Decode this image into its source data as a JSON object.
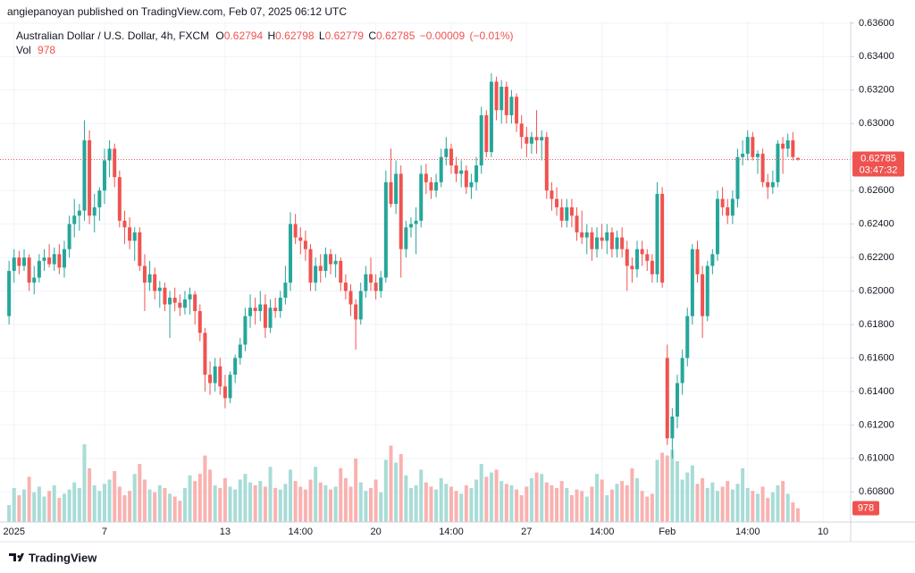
{
  "header": {
    "published": "angiepanoyan published on TradingView.com, Feb 07, 2025 06:12 UTC"
  },
  "chart_data": {
    "type": "candlestick",
    "symbol": "Australian Dollar / U.S. Dollar, 4h, FXCM",
    "legend_labels": {
      "open": "O",
      "high": "H",
      "low": "L",
      "close": "C"
    },
    "last": {
      "open": 0.62794,
      "high": 0.62798,
      "low": 0.62779,
      "close": 0.62785,
      "change": {
        "value": -9e-05,
        "label": "−0.00009"
      },
      "change_pct": {
        "value": -0.01,
        "label": "(−0.01%)"
      }
    },
    "volume_label": "Vol",
    "last_volume": 978,
    "countdown": "03:47:32",
    "ohlc": [
      [
        0.6185,
        0.6218,
        0.618,
        0.6212
      ],
      [
        0.6212,
        0.6225,
        0.6205,
        0.622
      ],
      [
        0.622,
        0.6224,
        0.621,
        0.6215
      ],
      [
        0.6215,
        0.6225,
        0.6212,
        0.622
      ],
      [
        0.622,
        0.6222,
        0.62,
        0.6205
      ],
      [
        0.6205,
        0.6215,
        0.6198,
        0.6208
      ],
      [
        0.6208,
        0.6222,
        0.6205,
        0.6218
      ],
      [
        0.6218,
        0.6225,
        0.6212,
        0.622
      ],
      [
        0.622,
        0.6228,
        0.6214,
        0.6216
      ],
      [
        0.6216,
        0.6226,
        0.6212,
        0.6222
      ],
      [
        0.6222,
        0.6228,
        0.621,
        0.6214
      ],
      [
        0.6214,
        0.623,
        0.6208,
        0.6225
      ],
      [
        0.6225,
        0.6245,
        0.622,
        0.624
      ],
      [
        0.624,
        0.6255,
        0.6232,
        0.6245
      ],
      [
        0.6245,
        0.6252,
        0.6236,
        0.6248
      ],
      [
        0.6248,
        0.6302,
        0.6242,
        0.629
      ],
      [
        0.629,
        0.6296,
        0.624,
        0.6245
      ],
      [
        0.6245,
        0.6258,
        0.6235,
        0.625
      ],
      [
        0.625,
        0.6262,
        0.6242,
        0.626
      ],
      [
        0.626,
        0.6285,
        0.6252,
        0.6278
      ],
      [
        0.6278,
        0.629,
        0.6268,
        0.6285
      ],
      [
        0.6285,
        0.6288,
        0.6262,
        0.6268
      ],
      [
        0.6268,
        0.6272,
        0.6238,
        0.6242
      ],
      [
        0.6242,
        0.6248,
        0.6228,
        0.6238
      ],
      [
        0.6238,
        0.6244,
        0.6225,
        0.623
      ],
      [
        0.623,
        0.6238,
        0.6218,
        0.6235
      ],
      [
        0.6235,
        0.6238,
        0.6212,
        0.6215
      ],
      [
        0.6215,
        0.6222,
        0.6188,
        0.6205
      ],
      [
        0.6205,
        0.6218,
        0.62,
        0.621
      ],
      [
        0.621,
        0.6214,
        0.6195,
        0.62
      ],
      [
        0.62,
        0.6206,
        0.619,
        0.6202
      ],
      [
        0.6202,
        0.6205,
        0.6188,
        0.6192
      ],
      [
        0.6192,
        0.62,
        0.6172,
        0.6196
      ],
      [
        0.6196,
        0.6202,
        0.6188,
        0.6193
      ],
      [
        0.6193,
        0.6198,
        0.6185,
        0.619
      ],
      [
        0.619,
        0.62,
        0.6186,
        0.6195
      ],
      [
        0.6195,
        0.6202,
        0.6186,
        0.6198
      ],
      [
        0.6198,
        0.62,
        0.618,
        0.6188
      ],
      [
        0.6188,
        0.6192,
        0.617,
        0.6175
      ],
      [
        0.6175,
        0.6178,
        0.614,
        0.615
      ],
      [
        0.615,
        0.6158,
        0.6138,
        0.6145
      ],
      [
        0.6145,
        0.616,
        0.614,
        0.6155
      ],
      [
        0.6155,
        0.616,
        0.6138,
        0.6143
      ],
      [
        0.6143,
        0.615,
        0.613,
        0.6136
      ],
      [
        0.6136,
        0.6152,
        0.6133,
        0.615
      ],
      [
        0.615,
        0.6162,
        0.6145,
        0.616
      ],
      [
        0.616,
        0.6172,
        0.6156,
        0.6168
      ],
      [
        0.6168,
        0.619,
        0.6164,
        0.6185
      ],
      [
        0.6185,
        0.6198,
        0.6178,
        0.619
      ],
      [
        0.619,
        0.6196,
        0.618,
        0.6188
      ],
      [
        0.6188,
        0.62,
        0.6182,
        0.6192
      ],
      [
        0.6192,
        0.6198,
        0.6172,
        0.6178
      ],
      [
        0.6178,
        0.6195,
        0.6175,
        0.619
      ],
      [
        0.619,
        0.6196,
        0.6184,
        0.6188
      ],
      [
        0.6188,
        0.62,
        0.6184,
        0.6196
      ],
      [
        0.6196,
        0.6215,
        0.6192,
        0.6205
      ],
      [
        0.6205,
        0.6247,
        0.62,
        0.624
      ],
      [
        0.624,
        0.6246,
        0.6228,
        0.6232
      ],
      [
        0.6232,
        0.6238,
        0.6222,
        0.623
      ],
      [
        0.623,
        0.6236,
        0.6218,
        0.6225
      ],
      [
        0.6225,
        0.6228,
        0.62,
        0.6205
      ],
      [
        0.6205,
        0.622,
        0.62,
        0.6215
      ],
      [
        0.6215,
        0.6222,
        0.6205,
        0.6212
      ],
      [
        0.6212,
        0.6226,
        0.6208,
        0.6222
      ],
      [
        0.6222,
        0.6225,
        0.621,
        0.6216
      ],
      [
        0.6216,
        0.6222,
        0.6208,
        0.6218
      ],
      [
        0.6218,
        0.622,
        0.62,
        0.6205
      ],
      [
        0.6205,
        0.621,
        0.6195,
        0.62
      ],
      [
        0.62,
        0.6204,
        0.6185,
        0.6192
      ],
      [
        0.6192,
        0.6195,
        0.6165,
        0.6183
      ],
      [
        0.6183,
        0.6205,
        0.618,
        0.62
      ],
      [
        0.62,
        0.6215,
        0.6196,
        0.621
      ],
      [
        0.621,
        0.622,
        0.62,
        0.6205
      ],
      [
        0.6205,
        0.621,
        0.6195,
        0.62
      ],
      [
        0.62,
        0.6212,
        0.6196,
        0.6208
      ],
      [
        0.6208,
        0.6272,
        0.6205,
        0.6265
      ],
      [
        0.6265,
        0.6285,
        0.625,
        0.6252
      ],
      [
        0.6252,
        0.6278,
        0.6246,
        0.627
      ],
      [
        0.627,
        0.6275,
        0.6208,
        0.6225
      ],
      [
        0.6225,
        0.6242,
        0.622,
        0.6238
      ],
      [
        0.6238,
        0.6244,
        0.6232,
        0.624
      ],
      [
        0.624,
        0.625,
        0.6222,
        0.6242
      ],
      [
        0.6242,
        0.6275,
        0.6238,
        0.627
      ],
      [
        0.627,
        0.6276,
        0.6258,
        0.6265
      ],
      [
        0.6265,
        0.6268,
        0.6255,
        0.626
      ],
      [
        0.626,
        0.627,
        0.6256,
        0.6265
      ],
      [
        0.6265,
        0.6285,
        0.6262,
        0.628
      ],
      [
        0.628,
        0.6292,
        0.6275,
        0.6285
      ],
      [
        0.6285,
        0.6288,
        0.627,
        0.6275
      ],
      [
        0.6275,
        0.628,
        0.6265,
        0.627
      ],
      [
        0.627,
        0.6278,
        0.6262,
        0.6272
      ],
      [
        0.6272,
        0.6275,
        0.6258,
        0.6262
      ],
      [
        0.6262,
        0.627,
        0.6255,
        0.6265
      ],
      [
        0.6265,
        0.628,
        0.626,
        0.6275
      ],
      [
        0.6275,
        0.631,
        0.627,
        0.6305
      ],
      [
        0.6305,
        0.6308,
        0.628,
        0.6283
      ],
      [
        0.6283,
        0.633,
        0.628,
        0.6325
      ],
      [
        0.6325,
        0.6328,
        0.6302,
        0.6308
      ],
      [
        0.6308,
        0.6326,
        0.63,
        0.6322
      ],
      [
        0.6322,
        0.6325,
        0.63,
        0.6305
      ],
      [
        0.6305,
        0.632,
        0.63,
        0.6316
      ],
      [
        0.6316,
        0.6318,
        0.6295,
        0.63
      ],
      [
        0.63,
        0.6305,
        0.6285,
        0.6292
      ],
      [
        0.6292,
        0.6298,
        0.628,
        0.6288
      ],
      [
        0.6288,
        0.6295,
        0.6282,
        0.6292
      ],
      [
        0.6292,
        0.6308,
        0.6282,
        0.629
      ],
      [
        0.629,
        0.6296,
        0.6278,
        0.6292
      ],
      [
        0.6292,
        0.6295,
        0.6255,
        0.626
      ],
      [
        0.626,
        0.6265,
        0.6248,
        0.6255
      ],
      [
        0.6255,
        0.6262,
        0.6245,
        0.625
      ],
      [
        0.625,
        0.6255,
        0.6238,
        0.6242
      ],
      [
        0.6242,
        0.6255,
        0.6238,
        0.625
      ],
      [
        0.625,
        0.6255,
        0.6238,
        0.6245
      ],
      [
        0.6245,
        0.625,
        0.623,
        0.6235
      ],
      [
        0.6235,
        0.6248,
        0.6228,
        0.6232
      ],
      [
        0.6232,
        0.624,
        0.6222,
        0.6235
      ],
      [
        0.6235,
        0.6238,
        0.6218,
        0.6225
      ],
      [
        0.6225,
        0.6238,
        0.622,
        0.6232
      ],
      [
        0.6232,
        0.624,
        0.6225,
        0.623
      ],
      [
        0.623,
        0.624,
        0.6222,
        0.6235
      ],
      [
        0.6235,
        0.6238,
        0.622,
        0.6225
      ],
      [
        0.6225,
        0.6236,
        0.622,
        0.6232
      ],
      [
        0.6232,
        0.6238,
        0.622,
        0.6225
      ],
      [
        0.6225,
        0.623,
        0.62,
        0.6215
      ],
      [
        0.6215,
        0.622,
        0.6205,
        0.6213
      ],
      [
        0.6213,
        0.623,
        0.6208,
        0.6225
      ],
      [
        0.6225,
        0.623,
        0.6215,
        0.6222
      ],
      [
        0.6222,
        0.6225,
        0.6212,
        0.6218
      ],
      [
        0.6218,
        0.6222,
        0.6205,
        0.621
      ],
      [
        0.621,
        0.6265,
        0.6205,
        0.6258
      ],
      [
        0.6258,
        0.6262,
        0.6202,
        0.6205
      ],
      [
        0.616,
        0.6168,
        0.6108,
        0.6112
      ],
      [
        0.6112,
        0.613,
        0.61,
        0.6125
      ],
      [
        0.6125,
        0.615,
        0.6118,
        0.6145
      ],
      [
        0.6145,
        0.6165,
        0.6138,
        0.616
      ],
      [
        0.616,
        0.619,
        0.6155,
        0.6185
      ],
      [
        0.6185,
        0.6228,
        0.618,
        0.6225
      ],
      [
        0.6225,
        0.623,
        0.6205,
        0.621
      ],
      [
        0.621,
        0.6215,
        0.6172,
        0.6185
      ],
      [
        0.6185,
        0.6218,
        0.6182,
        0.6215
      ],
      [
        0.6215,
        0.6225,
        0.621,
        0.6222
      ],
      [
        0.6222,
        0.626,
        0.6218,
        0.6255
      ],
      [
        0.6255,
        0.6262,
        0.6245,
        0.625
      ],
      [
        0.625,
        0.6255,
        0.624,
        0.6245
      ],
      [
        0.6245,
        0.626,
        0.624,
        0.6255
      ],
      [
        0.6255,
        0.6285,
        0.625,
        0.628
      ],
      [
        0.628,
        0.629,
        0.6275,
        0.6282
      ],
      [
        0.6282,
        0.6296,
        0.6278,
        0.6292
      ],
      [
        0.6292,
        0.6295,
        0.6278,
        0.628
      ],
      [
        0.628,
        0.6284,
        0.627,
        0.6282
      ],
      [
        0.6282,
        0.6285,
        0.6262,
        0.6265
      ],
      [
        0.6265,
        0.627,
        0.6255,
        0.6262
      ],
      [
        0.6262,
        0.6272,
        0.6258,
        0.6265
      ],
      [
        0.6265,
        0.629,
        0.6262,
        0.6288
      ],
      [
        0.6288,
        0.6292,
        0.627,
        0.6285
      ],
      [
        0.6285,
        0.6294,
        0.628,
        0.629
      ],
      [
        0.629,
        0.6295,
        0.6278,
        0.628
      ],
      [
        0.62794,
        0.62798,
        0.62779,
        0.62785
      ]
    ],
    "volume": [
      1200,
      2400,
      1900,
      2300,
      3200,
      2100,
      2500,
      1800,
      2200,
      2600,
      1700,
      2000,
      2300,
      2800,
      2400,
      5500,
      3800,
      2600,
      2200,
      2700,
      3000,
      3600,
      2500,
      1900,
      2200,
      3400,
      4100,
      3000,
      2300,
      2100,
      2600,
      2400,
      2000,
      1800,
      1500,
      2400,
      3300,
      2900,
      3400,
      4700,
      3700,
      2600,
      2400,
      3100,
      2500,
      2300,
      3000,
      3400,
      2800,
      2600,
      2900,
      2500,
      3900,
      2400,
      2300,
      2700,
      3700,
      2900,
      2500,
      2300,
      3000,
      3900,
      2800,
      2600,
      2300,
      2500,
      3800,
      3100,
      2500,
      4500,
      2800,
      2200,
      2400,
      3000,
      2100,
      4400,
      5400,
      4200,
      4800,
      3300,
      2400,
      2600,
      3700,
      2800,
      2500,
      2300,
      3100,
      2700,
      2500,
      2200,
      2000,
      2600,
      2400,
      3000,
      4100,
      3200,
      3500,
      3700,
      2900,
      2700,
      2600,
      2300,
      1900,
      2500,
      3100,
      3500,
      3400,
      2800,
      2600,
      2400,
      2900,
      2400,
      1900,
      2300,
      2200,
      1800,
      2500,
      3400,
      3000,
      1900,
      2300,
      2700,
      2900,
      2600,
      3800,
      3100,
      2200,
      1800,
      2000,
      4400,
      4900,
      4700,
      5100,
      4300,
      3000,
      3500,
      4000,
      2700,
      3100,
      2400,
      2800,
      2200,
      2500,
      2900,
      2300,
      2700,
      3800,
      2400,
      2200,
      2000,
      2500,
      1700,
      2100,
      2600,
      2900,
      2000,
      1400,
      978
    ],
    "colors": {
      "up": "#26a69a",
      "down": "#ef5350",
      "up_volume": "#a8dcd7",
      "down_volume": "#f9b2b0"
    },
    "ylim": [
      0.6062,
      0.6361
    ],
    "yticks": [
      {
        "value": 0.636,
        "label": "0.63600"
      },
      {
        "value": 0.634,
        "label": "0.63400"
      },
      {
        "value": 0.632,
        "label": "0.63200"
      },
      {
        "value": 0.63,
        "label": "0.63000"
      },
      {
        "value": 0.628,
        "label": "0.62800"
      },
      {
        "value": 0.626,
        "label": "0.62600"
      },
      {
        "value": 0.624,
        "label": "0.62400"
      },
      {
        "value": 0.622,
        "label": "0.62200"
      },
      {
        "value": 0.62,
        "label": "0.62000"
      },
      {
        "value": 0.618,
        "label": "0.61800"
      },
      {
        "value": 0.616,
        "label": "0.61600"
      },
      {
        "value": 0.614,
        "label": "0.61400"
      },
      {
        "value": 0.612,
        "label": "0.61200"
      },
      {
        "value": 0.61,
        "label": "0.61000"
      },
      {
        "value": 0.608,
        "label": "0.60800"
      }
    ],
    "xlim": [
      -1.8,
      167.5
    ],
    "xticks": [
      {
        "value": 1,
        "label": "2025"
      },
      {
        "value": 19,
        "label": "7"
      },
      {
        "value": 43,
        "label": "13"
      },
      {
        "value": 58,
        "label": "14:00"
      },
      {
        "value": 73,
        "label": "20"
      },
      {
        "value": 88,
        "label": "14:00"
      },
      {
        "value": 103,
        "label": "27"
      },
      {
        "value": 118,
        "label": "14:00"
      },
      {
        "value": 131,
        "label": "Feb"
      },
      {
        "value": 147,
        "label": "14:00"
      },
      {
        "value": 162,
        "label": "10"
      }
    ],
    "volume_ylim": [
      0,
      6000
    ],
    "grid": true
  },
  "footer": {
    "brand": "TradingView"
  }
}
